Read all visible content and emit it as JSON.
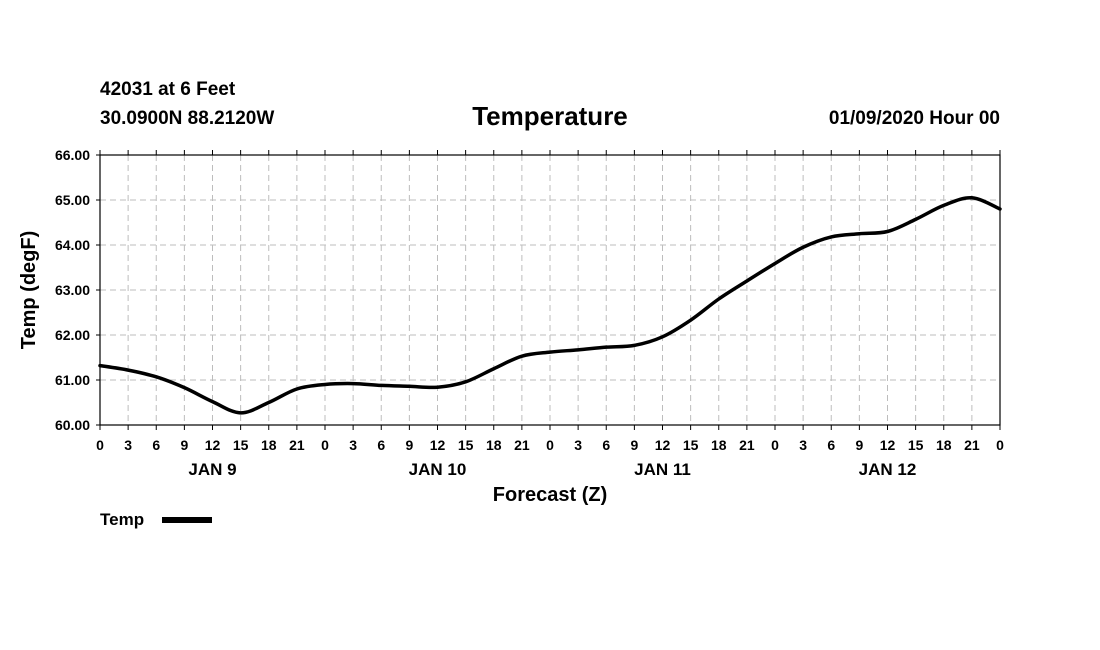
{
  "header": {
    "station": "42031 at 6 Feet",
    "location": "30.0900N 88.2120W",
    "title": "Temperature",
    "run": "01/09/2020 Hour 00"
  },
  "chart_data": {
    "type": "line",
    "title": "Temperature",
    "xlabel": "Forecast (Z)",
    "ylabel": "Temp (degF)",
    "ylim": [
      60,
      66
    ],
    "xlim_hours": [
      0,
      96
    ],
    "y_ticks": [
      "60.00",
      "61.00",
      "62.00",
      "63.00",
      "64.00",
      "65.00",
      "66.00"
    ],
    "x_ticks": [
      "0",
      "3",
      "6",
      "9",
      "12",
      "15",
      "18",
      "21",
      "0",
      "3",
      "6",
      "9",
      "12",
      "15",
      "18",
      "21",
      "0",
      "3",
      "6",
      "9",
      "12",
      "15",
      "18",
      "21",
      "0",
      "3",
      "6",
      "9",
      "12",
      "15",
      "18",
      "21",
      "0"
    ],
    "day_labels": [
      "JAN 9",
      "JAN 10",
      "JAN 11",
      "JAN 12"
    ],
    "grid": true,
    "legend_position": "bottom-left",
    "color": "#000000",
    "series": [
      {
        "name": "Temp",
        "x": [
          0,
          3,
          6,
          9,
          12,
          15,
          18,
          21,
          24,
          27,
          30,
          33,
          36,
          39,
          42,
          45,
          48,
          51,
          54,
          57,
          60,
          63,
          66,
          69,
          72,
          75,
          78,
          81,
          84,
          87,
          90,
          93,
          96
        ],
        "y": [
          61.32,
          61.22,
          61.07,
          60.83,
          60.52,
          60.27,
          60.5,
          60.8,
          60.9,
          60.92,
          60.88,
          60.86,
          60.84,
          60.96,
          61.25,
          61.53,
          61.62,
          61.67,
          61.73,
          61.77,
          61.96,
          62.33,
          62.8,
          63.2,
          63.59,
          63.95,
          64.18,
          64.25,
          64.3,
          64.57,
          64.88,
          65.05,
          64.8
        ]
      }
    ]
  },
  "legend": {
    "label": "Temp"
  }
}
